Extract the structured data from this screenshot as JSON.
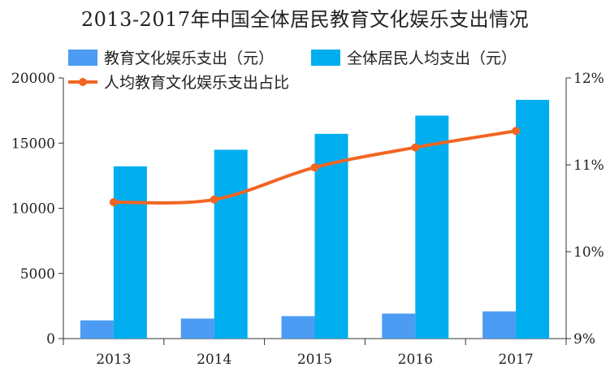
{
  "chart_data": {
    "type": "bar",
    "title": "2013-2017年中国全体居民教育文化娱乐支出情况",
    "categories": [
      "2013",
      "2014",
      "2015",
      "2016",
      "2017"
    ],
    "series": [
      {
        "name": "教育文化娱乐支出（元）",
        "kind": "bar",
        "axis": "left",
        "color": "#4B9CF2",
        "values": [
          1398,
          1536,
          1723,
          1915,
          2086
        ]
      },
      {
        "name": "全体居民人均支出（元）",
        "kind": "bar",
        "axis": "left",
        "color": "#00AEEF",
        "values": [
          13220,
          14491,
          15712,
          17111,
          18322
        ]
      },
      {
        "name": "人均教育文化娱乐支出占比",
        "kind": "line",
        "axis": "right",
        "color": "#F26522",
        "values": [
          10.57,
          10.6,
          10.97,
          11.2,
          11.39
        ]
      }
    ],
    "y_left": {
      "min": 0,
      "max": 20000,
      "ticks": [
        "0",
        "5000",
        "10000",
        "15000",
        "20000"
      ]
    },
    "y_right": {
      "min": 9,
      "max": 12,
      "ticks": [
        "9%",
        "10%",
        "11%",
        "12%"
      ]
    },
    "grid": false,
    "legend": "top"
  }
}
